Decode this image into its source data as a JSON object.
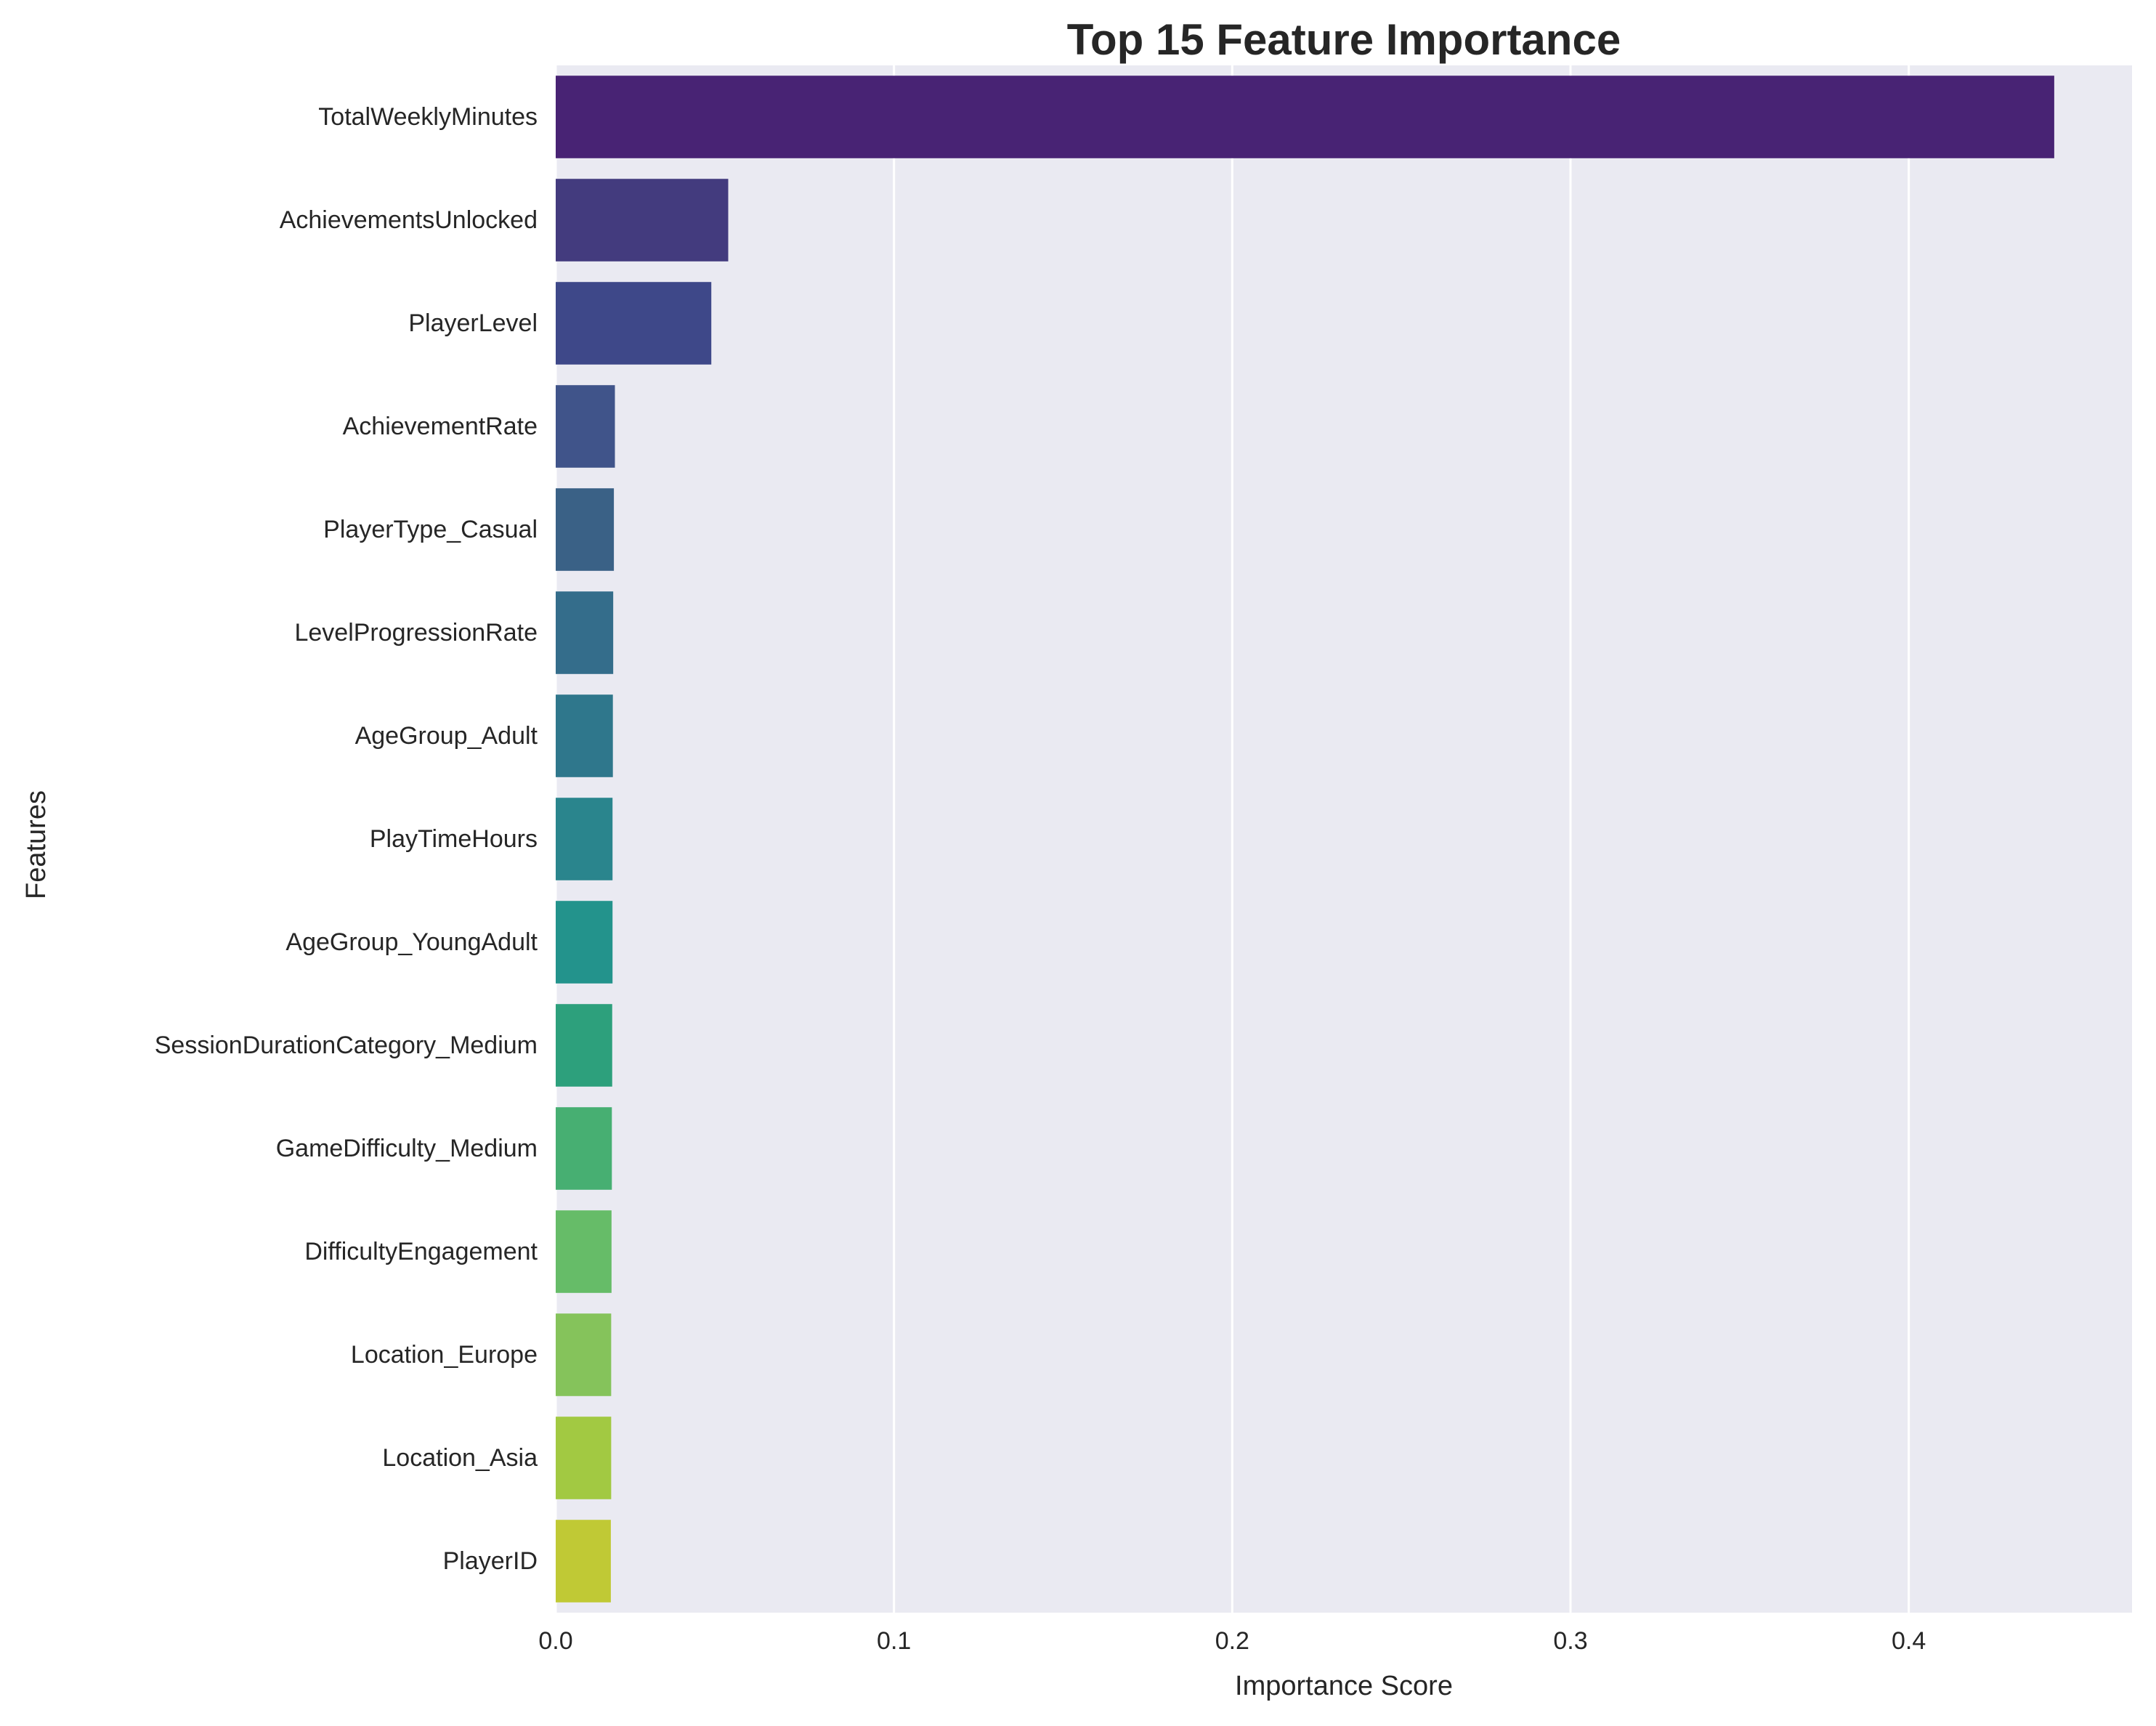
{
  "chart_data": {
    "type": "bar",
    "orientation": "horizontal",
    "title": "Top 15 Feature Importance",
    "xlabel": "Importance Score",
    "ylabel": "Features",
    "xlim": [
      0,
      0.466
    ],
    "xticks": [
      0.0,
      0.1,
      0.2,
      0.3,
      0.4
    ],
    "xtick_labels": [
      "0.0",
      "0.1",
      "0.2",
      "0.3",
      "0.4"
    ],
    "grid": true,
    "legend": "none",
    "categories": [
      "TotalWeeklyMinutes",
      "AchievementsUnlocked",
      "PlayerLevel",
      "AchievementRate",
      "PlayerType_Casual",
      "LevelProgressionRate",
      "AgeGroup_Adult",
      "PlayTimeHours",
      "AgeGroup_YoungAdult",
      "SessionDurationCategory_Medium",
      "GameDifficulty_Medium",
      "DifficultyEngagement",
      "Location_Europe",
      "Location_Asia",
      "PlayerID"
    ],
    "values": [
      0.443,
      0.051,
      0.046,
      0.0175,
      0.0172,
      0.017,
      0.0169,
      0.0168,
      0.0168,
      0.0167,
      0.0166,
      0.0165,
      0.0164,
      0.0164,
      0.0163
    ],
    "colors": [
      "#482374",
      "#433b7e",
      "#3e4889",
      "#40548a",
      "#3a6186",
      "#346d8b",
      "#2f778c",
      "#2a858d",
      "#23938c",
      "#2da07c",
      "#47af72",
      "#66bc68",
      "#85c35b",
      "#a2c942",
      "#c0c935"
    ],
    "style": {
      "plot_background": "#eaeaf2",
      "grid_color": "#ffffff"
    }
  }
}
